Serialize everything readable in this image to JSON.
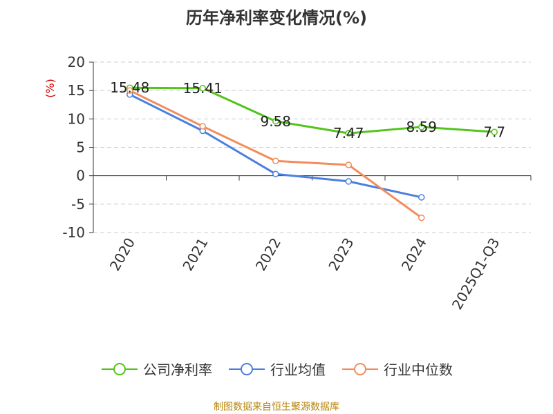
{
  "chart_data": {
    "type": "line",
    "title": "历年净利率变化情况(%)",
    "ylabel": "(%)",
    "categories": [
      "2020",
      "2021",
      "2022",
      "2023",
      "2024",
      "2025Q1-Q3"
    ],
    "ylim": [
      -10,
      20
    ],
    "yticks": [
      20,
      15,
      10,
      5,
      0,
      -5,
      -10
    ],
    "grid": "horizontal-dashed",
    "legend_position": "bottom",
    "series": [
      {
        "name": "公司净利率",
        "color": "#52c41a",
        "values": [
          15.48,
          15.41,
          9.58,
          7.47,
          8.59,
          7.7
        ],
        "labels": [
          "15.48",
          "15.41",
          "9.58",
          "7.47",
          "8.59",
          "7.7"
        ]
      },
      {
        "name": "行业均值",
        "color": "#4a7fe0",
        "values": [
          14.3,
          7.9,
          0.3,
          -1.0,
          -3.8,
          null
        ]
      },
      {
        "name": "行业中位数",
        "color": "#f28c5a",
        "values": [
          15.0,
          8.7,
          2.6,
          1.9,
          -7.4,
          null
        ]
      }
    ]
  },
  "footer": {
    "source": "制图数据来自恒生聚源数据库"
  }
}
